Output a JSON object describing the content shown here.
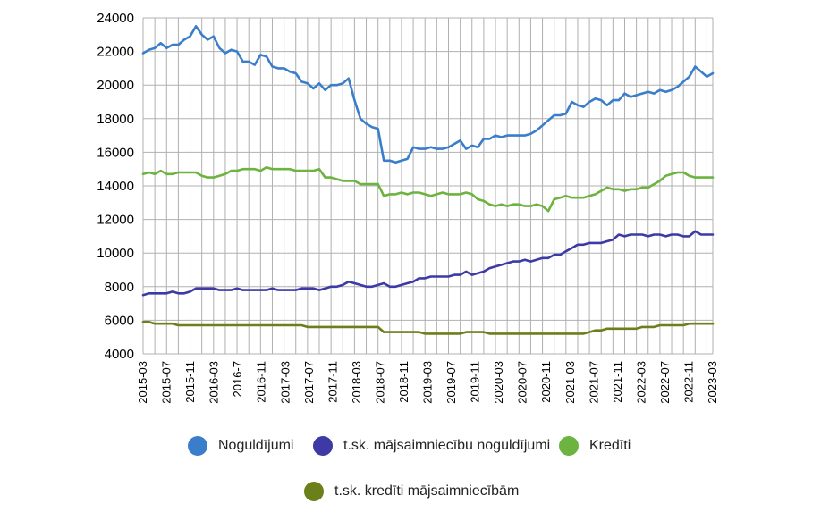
{
  "chart_data": {
    "type": "line",
    "title": "",
    "xlabel": "",
    "ylabel": "",
    "ylim": [
      4000,
      24000
    ],
    "yticks": [
      4000,
      6000,
      8000,
      10000,
      12000,
      14000,
      16000,
      18000,
      20000,
      22000,
      24000
    ],
    "grid": true,
    "legend_position": "bottom",
    "x_tick_labels": [
      "2015-03",
      "2015-07",
      "2015-11",
      "2016-03",
      "2016-7",
      "2016-11",
      "2017-03",
      "2017-07",
      "2017-11",
      "2018-03",
      "2018-07",
      "2018-11",
      "2019-03",
      "2019-07",
      "2019-11",
      "2020-03",
      "2020-07",
      "2020-11",
      "2021-03",
      "2021-07",
      "2021-11",
      "2022-03",
      "2022-07",
      "2022-11",
      "2023-03"
    ],
    "x_start": "2015-03",
    "x_end": "2023-03",
    "series": [
      {
        "name": "Noguldījumi",
        "color": "#3a7ecb",
        "values": [
          21900,
          22100,
          22200,
          22500,
          22200,
          22400,
          22400,
          22700,
          22900,
          23500,
          23000,
          22700,
          22900,
          22200,
          21900,
          22100,
          22000,
          21400,
          21400,
          21200,
          21800,
          21700,
          21100,
          21000,
          21000,
          20800,
          20700,
          20200,
          20100,
          19800,
          20100,
          19700,
          20000,
          20000,
          20100,
          20400,
          19100,
          18000,
          17700,
          17500,
          17400,
          15500,
          15500,
          15400,
          15500,
          15600,
          16300,
          16200,
          16200,
          16300,
          16200,
          16200,
          16300,
          16500,
          16700,
          16200,
          16400,
          16300,
          16800,
          16800,
          17000,
          16900,
          17000,
          17000,
          17000,
          17000,
          17100,
          17300,
          17600,
          17900,
          18200,
          18200,
          18300,
          19000,
          18800,
          18700,
          19000,
          19200,
          19100,
          18800,
          19100,
          19100,
          19500,
          19300,
          19400,
          19500,
          19600,
          19500,
          19700,
          19600,
          19700,
          19900,
          20200,
          20500,
          21100,
          20800,
          20500,
          20700
        ]
      },
      {
        "name": "t.sk. mājsaimniecību noguldījumi",
        "color": "#3d3aa6",
        "values": [
          7500,
          7600,
          7600,
          7600,
          7600,
          7700,
          7600,
          7600,
          7700,
          7900,
          7900,
          7900,
          7900,
          7800,
          7800,
          7800,
          7900,
          7800,
          7800,
          7800,
          7800,
          7800,
          7900,
          7800,
          7800,
          7800,
          7800,
          7900,
          7900,
          7900,
          7800,
          7900,
          8000,
          8000,
          8100,
          8300,
          8200,
          8100,
          8000,
          8000,
          8100,
          8200,
          8000,
          8000,
          8100,
          8200,
          8300,
          8500,
          8500,
          8600,
          8600,
          8600,
          8600,
          8700,
          8700,
          8900,
          8700,
          8800,
          8900,
          9100,
          9200,
          9300,
          9400,
          9500,
          9500,
          9600,
          9500,
          9600,
          9700,
          9700,
          9900,
          9900,
          10100,
          10300,
          10500,
          10500,
          10600,
          10600,
          10600,
          10700,
          10800,
          11100,
          11000,
          11100,
          11100,
          11100,
          11000,
          11100,
          11100,
          11000,
          11100,
          11100,
          11000,
          11000,
          11300,
          11100,
          11100,
          11100
        ]
      },
      {
        "name": "Kredīti",
        "color": "#6cb33f",
        "values": [
          14700,
          14800,
          14700,
          14900,
          14700,
          14700,
          14800,
          14800,
          14800,
          14800,
          14600,
          14500,
          14500,
          14600,
          14700,
          14900,
          14900,
          15000,
          15000,
          15000,
          14900,
          15100,
          15000,
          15000,
          15000,
          15000,
          14900,
          14900,
          14900,
          14900,
          15000,
          14500,
          14500,
          14400,
          14300,
          14300,
          14300,
          14100,
          14100,
          14100,
          14100,
          13400,
          13500,
          13500,
          13600,
          13500,
          13600,
          13600,
          13500,
          13400,
          13500,
          13600,
          13500,
          13500,
          13500,
          13600,
          13500,
          13200,
          13100,
          12900,
          12800,
          12900,
          12800,
          12900,
          12900,
          12800,
          12800,
          12900,
          12800,
          12500,
          13200,
          13300,
          13400,
          13300,
          13300,
          13300,
          13400,
          13500,
          13700,
          13900,
          13800,
          13800,
          13700,
          13800,
          13800,
          13900,
          13900,
          14100,
          14300,
          14600,
          14700,
          14800,
          14800,
          14600,
          14500,
          14500,
          14500,
          14500
        ]
      },
      {
        "name": "t.sk. kredīti mājsaimniecībām",
        "color": "#6b7f1a",
        "values": [
          5900,
          5900,
          5800,
          5800,
          5800,
          5800,
          5700,
          5700,
          5700,
          5700,
          5700,
          5700,
          5700,
          5700,
          5700,
          5700,
          5700,
          5700,
          5700,
          5700,
          5700,
          5700,
          5700,
          5700,
          5700,
          5700,
          5700,
          5700,
          5600,
          5600,
          5600,
          5600,
          5600,
          5600,
          5600,
          5600,
          5600,
          5600,
          5600,
          5600,
          5600,
          5300,
          5300,
          5300,
          5300,
          5300,
          5300,
          5300,
          5200,
          5200,
          5200,
          5200,
          5200,
          5200,
          5200,
          5300,
          5300,
          5300,
          5300,
          5200,
          5200,
          5200,
          5200,
          5200,
          5200,
          5200,
          5200,
          5200,
          5200,
          5200,
          5200,
          5200,
          5200,
          5200,
          5200,
          5200,
          5300,
          5400,
          5400,
          5500,
          5500,
          5500,
          5500,
          5500,
          5500,
          5600,
          5600,
          5600,
          5700,
          5700,
          5700,
          5700,
          5700,
          5800,
          5800,
          5800,
          5800,
          5800
        ]
      }
    ]
  }
}
